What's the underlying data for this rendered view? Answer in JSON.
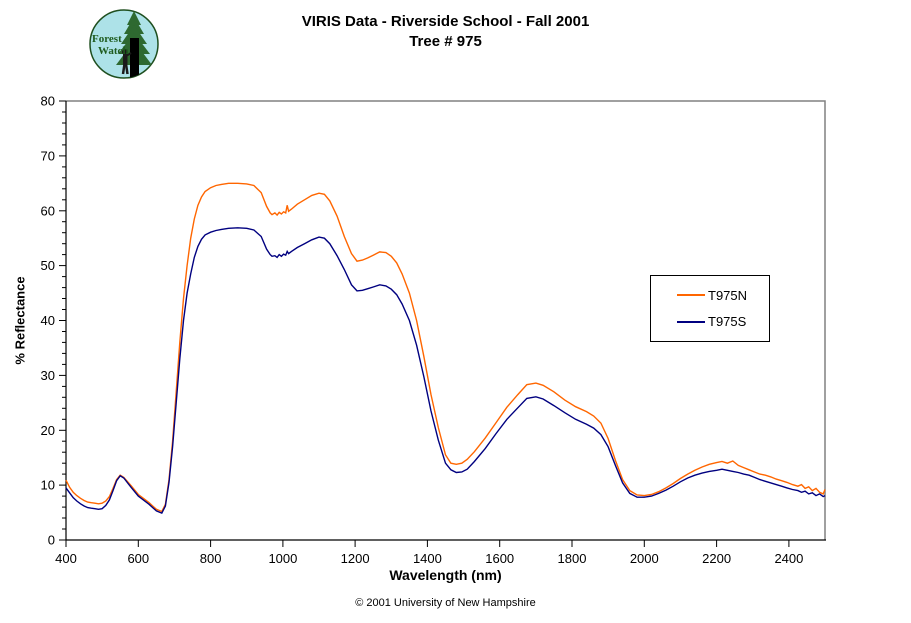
{
  "header": {
    "title_line1": "VIRIS Data - Riverside School - Fall 2001",
    "title_line2": "Tree # 975"
  },
  "logo": {
    "name": "forest-watch-logo",
    "line1": "Forest",
    "line2": "Watch",
    "colors": {
      "background": "#ade2e8",
      "tree": "#2e6930",
      "text": "#1f5c1f",
      "trunk": "#000000"
    }
  },
  "footer": {
    "copyright": "© 2001 University of New Hampshire"
  },
  "chart_data": {
    "type": "line",
    "title": "VIRIS Data - Riverside School - Fall 2001",
    "subtitle": "Tree # 975",
    "xlabel": "Wavelength (nm)",
    "ylabel": "% Reflectance",
    "xlim": [
      400,
      2500
    ],
    "ylim": [
      0,
      80
    ],
    "x_ticks": [
      400,
      600,
      800,
      1000,
      1200,
      1400,
      1600,
      1800,
      2000,
      2200,
      2400
    ],
    "y_ticks": [
      0,
      10,
      20,
      30,
      40,
      50,
      60,
      70,
      80
    ],
    "y_minor_step": 2,
    "grid": false,
    "legend_position": "right-middle",
    "border_color": "#808080",
    "x": [
      400,
      410,
      420,
      430,
      440,
      450,
      460,
      470,
      480,
      490,
      500,
      510,
      520,
      530,
      540,
      550,
      560,
      580,
      600,
      610,
      620,
      630,
      640,
      650,
      665,
      675,
      685,
      695,
      705,
      715,
      725,
      735,
      745,
      755,
      765,
      775,
      785,
      800,
      815,
      830,
      850,
      875,
      900,
      920,
      940,
      955,
      965,
      970,
      978,
      984,
      990,
      996,
      1002,
      1008,
      1012,
      1016,
      1024,
      1040,
      1060,
      1080,
      1100,
      1115,
      1130,
      1150,
      1170,
      1190,
      1205,
      1220,
      1235,
      1250,
      1268,
      1285,
      1300,
      1315,
      1330,
      1350,
      1370,
      1390,
      1410,
      1430,
      1450,
      1465,
      1480,
      1495,
      1510,
      1530,
      1560,
      1590,
      1620,
      1650,
      1675,
      1700,
      1720,
      1750,
      1780,
      1810,
      1840,
      1860,
      1880,
      1900,
      1920,
      1940,
      1960,
      1980,
      2000,
      2020,
      2040,
      2060,
      2080,
      2100,
      2120,
      2140,
      2160,
      2180,
      2200,
      2215,
      2230,
      2245,
      2260,
      2275,
      2290,
      2305,
      2320,
      2335,
      2350,
      2365,
      2380,
      2395,
      2410,
      2425,
      2435,
      2445,
      2455,
      2465,
      2475,
      2485,
      2495,
      2500
    ],
    "series": [
      {
        "name": "T975N",
        "color": "#FF6600",
        "y": [
          10.9,
          9.6,
          8.7,
          8.1,
          7.6,
          7.2,
          6.9,
          6.8,
          6.7,
          6.6,
          6.7,
          7.1,
          7.9,
          9.4,
          11.0,
          11.8,
          11.4,
          9.9,
          8.3,
          7.8,
          7.3,
          6.8,
          6.2,
          5.6,
          5.2,
          6.5,
          11.0,
          18.0,
          27.0,
          36.0,
          44.0,
          50.0,
          55.0,
          58.5,
          61.0,
          62.5,
          63.5,
          64.2,
          64.6,
          64.8,
          65.0,
          65.0,
          64.9,
          64.6,
          63.3,
          60.8,
          59.6,
          59.3,
          59.6,
          59.2,
          59.7,
          59.4,
          59.8,
          59.6,
          61.0,
          59.9,
          60.3,
          61.2,
          62.0,
          62.8,
          63.2,
          63.0,
          61.8,
          59.0,
          55.3,
          52.2,
          50.8,
          51.0,
          51.4,
          51.9,
          52.5,
          52.4,
          51.7,
          50.5,
          48.5,
          45.0,
          40.0,
          33.5,
          26.5,
          20.5,
          15.5,
          14.0,
          13.8,
          14.0,
          14.7,
          16.1,
          18.6,
          21.4,
          24.2,
          26.5,
          28.3,
          28.6,
          28.2,
          27.0,
          25.5,
          24.3,
          23.4,
          22.6,
          21.3,
          18.5,
          14.5,
          11.0,
          9.0,
          8.2,
          8.1,
          8.3,
          8.8,
          9.5,
          10.3,
          11.2,
          12.0,
          12.7,
          13.3,
          13.8,
          14.1,
          14.3,
          14.0,
          14.4,
          13.6,
          13.2,
          12.8,
          12.4,
          12.0,
          11.8,
          11.5,
          11.1,
          10.8,
          10.5,
          10.1,
          9.8,
          10.1,
          9.4,
          9.7,
          9.0,
          9.4,
          8.7,
          8.4,
          9.2
        ]
      },
      {
        "name": "T975S",
        "color": "#000080",
        "y": [
          9.5,
          8.6,
          7.7,
          7.1,
          6.6,
          6.2,
          5.9,
          5.8,
          5.7,
          5.6,
          5.7,
          6.3,
          7.3,
          9.0,
          10.8,
          11.7,
          11.3,
          9.6,
          8.0,
          7.5,
          7.0,
          6.5,
          5.9,
          5.3,
          4.9,
          6.2,
          10.5,
          17.0,
          25.0,
          33.0,
          40.0,
          45.0,
          48.5,
          51.5,
          53.5,
          54.8,
          55.6,
          56.1,
          56.4,
          56.6,
          56.8,
          56.9,
          56.8,
          56.5,
          55.3,
          53.0,
          52.0,
          51.7,
          51.8,
          51.5,
          52.0,
          51.7,
          52.1,
          51.9,
          52.6,
          52.2,
          52.6,
          53.3,
          54.0,
          54.7,
          55.2,
          55.0,
          54.0,
          51.8,
          49.3,
          46.5,
          45.4,
          45.5,
          45.8,
          46.1,
          46.5,
          46.3,
          45.7,
          44.7,
          43.0,
          40.0,
          35.5,
          29.8,
          23.5,
          18.2,
          14.0,
          12.8,
          12.3,
          12.4,
          12.9,
          14.3,
          16.7,
          19.4,
          22.0,
          24.1,
          25.8,
          26.1,
          25.7,
          24.5,
          23.2,
          22.0,
          21.1,
          20.4,
          19.2,
          17.0,
          13.6,
          10.4,
          8.5,
          7.8,
          7.8,
          8.0,
          8.5,
          9.1,
          9.8,
          10.6,
          11.3,
          11.8,
          12.2,
          12.5,
          12.7,
          12.9,
          12.7,
          12.5,
          12.3,
          12.0,
          11.8,
          11.4,
          11.0,
          10.7,
          10.4,
          10.1,
          9.8,
          9.5,
          9.2,
          9.0,
          8.7,
          8.9,
          8.4,
          8.6,
          8.1,
          8.4,
          7.9,
          8.1
        ]
      }
    ]
  }
}
